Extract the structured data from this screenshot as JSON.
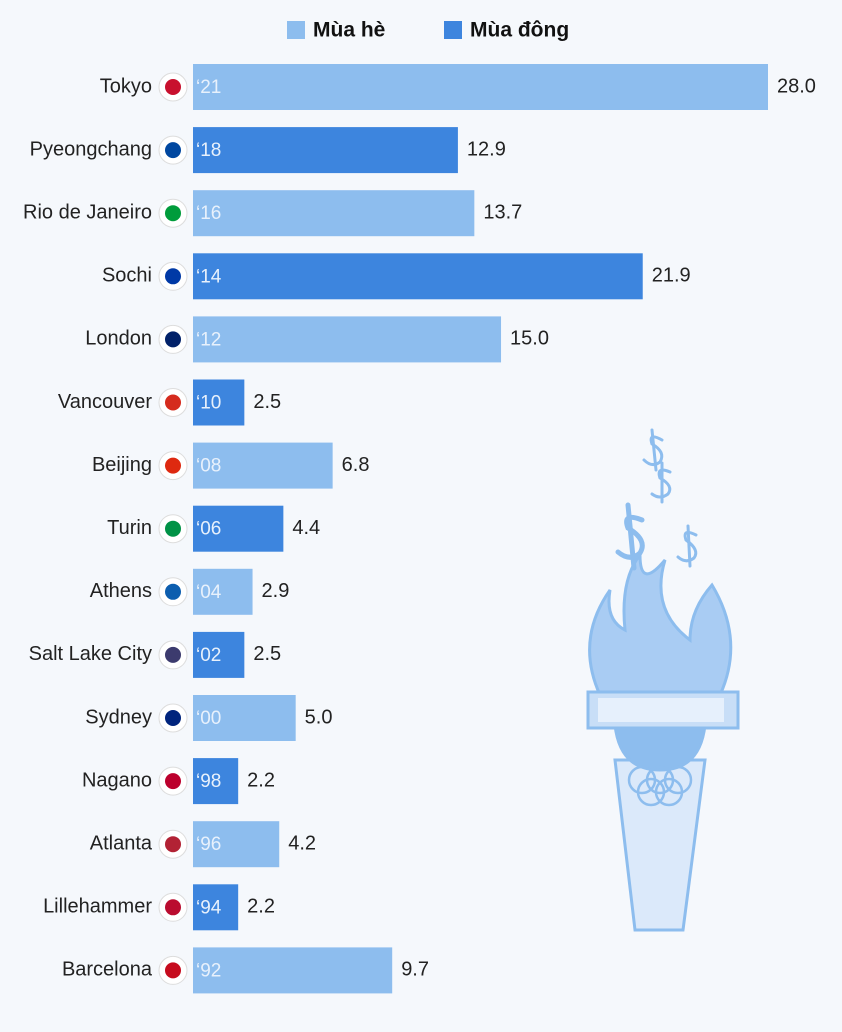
{
  "chart_data": {
    "type": "bar",
    "categories": [
      "Tokyo",
      "Pyeongchang",
      "Rio de Janeiro",
      "Sochi",
      "London",
      "Vancouver",
      "Beijing",
      "Turin",
      "Athens",
      "Salt Lake City",
      "Sydney",
      "Nagano",
      "Atlanta",
      "Lillehammer",
      "Barcelona"
    ],
    "year_labels": [
      "‘21",
      "‘18",
      "‘16",
      "‘14",
      "‘12",
      "‘10",
      "‘08",
      "‘06",
      "‘04",
      "‘02",
      "‘00",
      "‘98",
      "‘96",
      "‘94",
      "‘92"
    ],
    "series": [
      {
        "name": "Mùa hè",
        "color": "#8dbdee",
        "values": [
          28.0,
          null,
          13.7,
          null,
          15.0,
          null,
          6.8,
          null,
          2.9,
          null,
          5.0,
          null,
          4.2,
          null,
          9.7
        ],
        "value_labels": [
          "28.0",
          null,
          "13.7",
          null,
          "15.0",
          null,
          "6.8",
          null,
          "2.9",
          null,
          "5.0",
          null,
          "4.2",
          null,
          "9.7"
        ]
      },
      {
        "name": "Mùa đông",
        "color": "#3d85de",
        "values": [
          null,
          12.9,
          null,
          21.9,
          null,
          2.5,
          null,
          4.4,
          null,
          2.5,
          null,
          2.2,
          null,
          2.2,
          null
        ],
        "value_labels": [
          null,
          "12.9",
          null,
          "21.9",
          null,
          "2.5",
          null,
          "4.4",
          null,
          "2.5",
          null,
          "2.2",
          null,
          "2.2",
          null
        ]
      }
    ]
  }
}
